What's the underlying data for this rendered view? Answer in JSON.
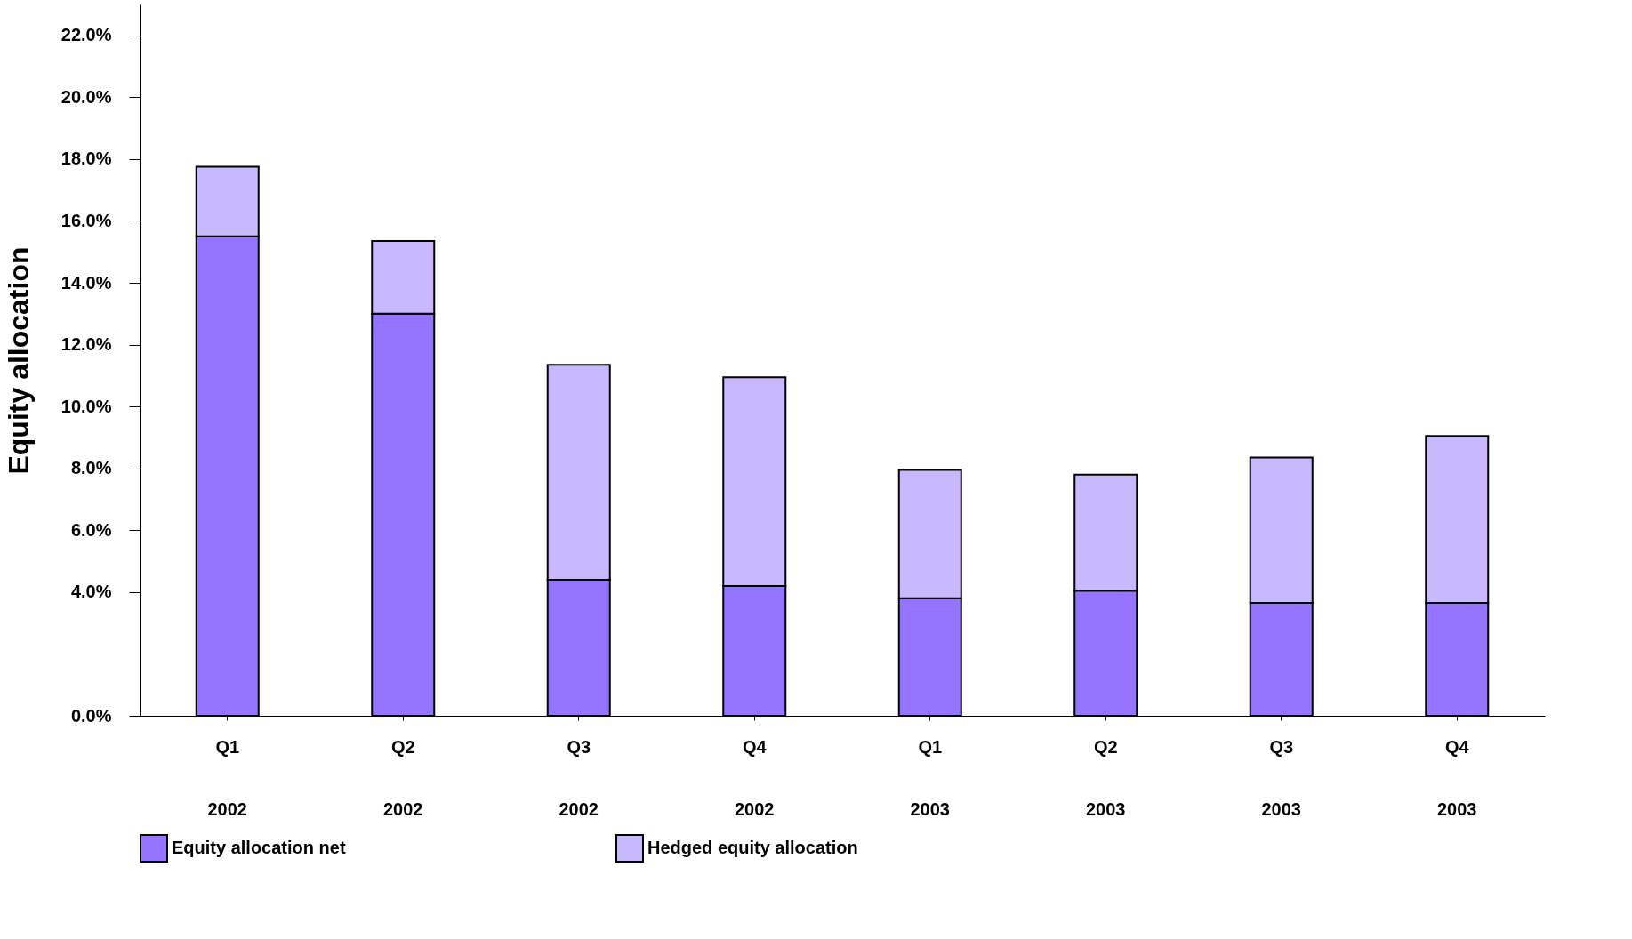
{
  "chart_data": {
    "type": "bar",
    "stacked": true,
    "ylabel": "Equity allocation",
    "categories": [
      "Q1\n2002",
      "Q2\n2002",
      "Q3\n2002",
      "Q4\n2002",
      "Q1\n2003",
      "Q2\n2003",
      "Q3\n2003",
      "Q4\n2003"
    ],
    "series": [
      {
        "name": "Equity allocation net",
        "color": "#9575ff",
        "values": [
          15.5,
          13.0,
          4.4,
          4.2,
          3.8,
          4.05,
          3.65,
          3.65
        ]
      },
      {
        "name": "Hedged equity allocation",
        "color": "#c8b9ff",
        "values": [
          2.25,
          2.35,
          6.95,
          6.75,
          4.15,
          3.75,
          4.7,
          5.4
        ]
      }
    ],
    "ylim": [
      0,
      23
    ],
    "yticks": [
      {
        "value": 0,
        "label": "0.0%"
      },
      {
        "value": 4,
        "label": "4.0%"
      },
      {
        "value": 6,
        "label": "6.0%"
      },
      {
        "value": 8,
        "label": "8.0%"
      },
      {
        "value": 10,
        "label": "10.0%"
      },
      {
        "value": 12,
        "label": "12.0%"
      },
      {
        "value": 14,
        "label": "14.0%"
      },
      {
        "value": 16,
        "label": "16.0%"
      },
      {
        "value": 18,
        "label": "18.0%"
      },
      {
        "value": 20,
        "label": "20.0%"
      },
      {
        "value": 22,
        "label": "22.0%"
      }
    ],
    "grid": false,
    "legend": "bottom"
  }
}
